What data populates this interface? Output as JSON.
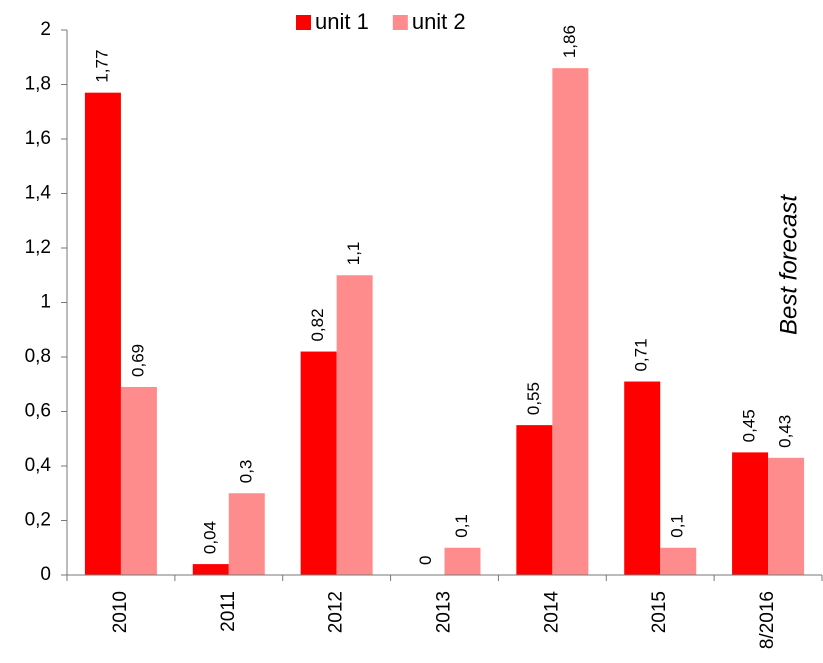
{
  "chart_data": {
    "type": "bar",
    "categories": [
      "2010",
      "2011",
      "2012",
      "2013",
      "2014",
      "2015",
      "8/2016"
    ],
    "series": [
      {
        "name": "unit 1",
        "color": "#ff0000",
        "values": [
          1.77,
          0.04,
          0.82,
          0,
          0.55,
          0.71,
          0.45
        ],
        "value_labels": [
          "1,77",
          "0,04",
          "0,82",
          "0",
          "0,55",
          "0,71",
          "0,45"
        ]
      },
      {
        "name": "unit 2",
        "color": "#ff8c8c",
        "values": [
          0.69,
          0.3,
          1.1,
          0.1,
          1.86,
          0.1,
          0.43
        ],
        "value_labels": [
          "0,69",
          "0,3",
          "1,1",
          "0,1",
          "1,86",
          "0,1",
          "0,43"
        ]
      }
    ],
    "ylim": [
      0,
      2
    ],
    "yticks": [
      0,
      {
        "value": 0.2,
        "label": "0,2"
      },
      {
        "value": 0.4,
        "label": "0,4"
      },
      {
        "value": 0.6,
        "label": "0,6"
      },
      {
        "value": 0.8,
        "label": "0,8"
      },
      1,
      {
        "value": 1.2,
        "label": "1,2"
      },
      {
        "value": 1.4,
        "label": "1,4"
      },
      {
        "value": 1.6,
        "label": "1,6"
      },
      {
        "value": 1.8,
        "label": "1,8"
      },
      2
    ],
    "annotation": "Best forecast",
    "legend": "top"
  }
}
